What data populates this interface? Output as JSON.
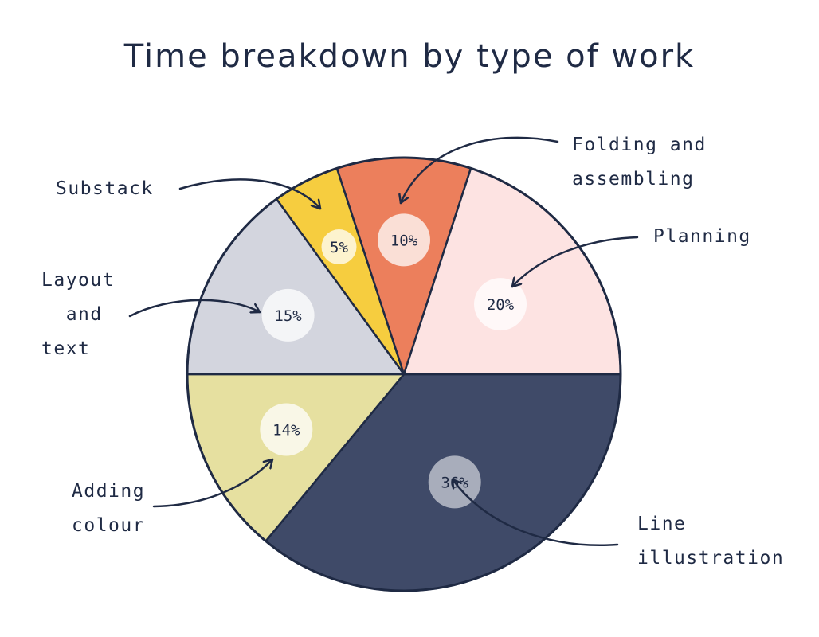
{
  "chart_data": {
    "type": "pie",
    "title": "Time breakdown by type of work",
    "slices": [
      {
        "label": "Line illustration",
        "value": 36,
        "display": "36%",
        "color": "#3f4a68"
      },
      {
        "label": "Adding colour",
        "value": 14,
        "display": "14%",
        "color": "#e6e0a0"
      },
      {
        "label": "Layout and text",
        "value": 15,
        "display": "15%",
        "color": "#d3d5de"
      },
      {
        "label": "Substack",
        "value": 5,
        "display": "5%",
        "color": "#f6cd3f"
      },
      {
        "label": "Folding and assembling",
        "value": 10,
        "display": "10%",
        "color": "#ec7f5c"
      },
      {
        "label": "Planning",
        "value": 20,
        "display": "20%",
        "color": "#fde3e2"
      }
    ],
    "callouts": {
      "folding": "Folding and\nassembling",
      "planning": "Planning",
      "substack": "Substack",
      "layout": "Layout\n  and\ntext",
      "adding": "Adding\ncolour",
      "line": "Line\nillustration"
    }
  }
}
